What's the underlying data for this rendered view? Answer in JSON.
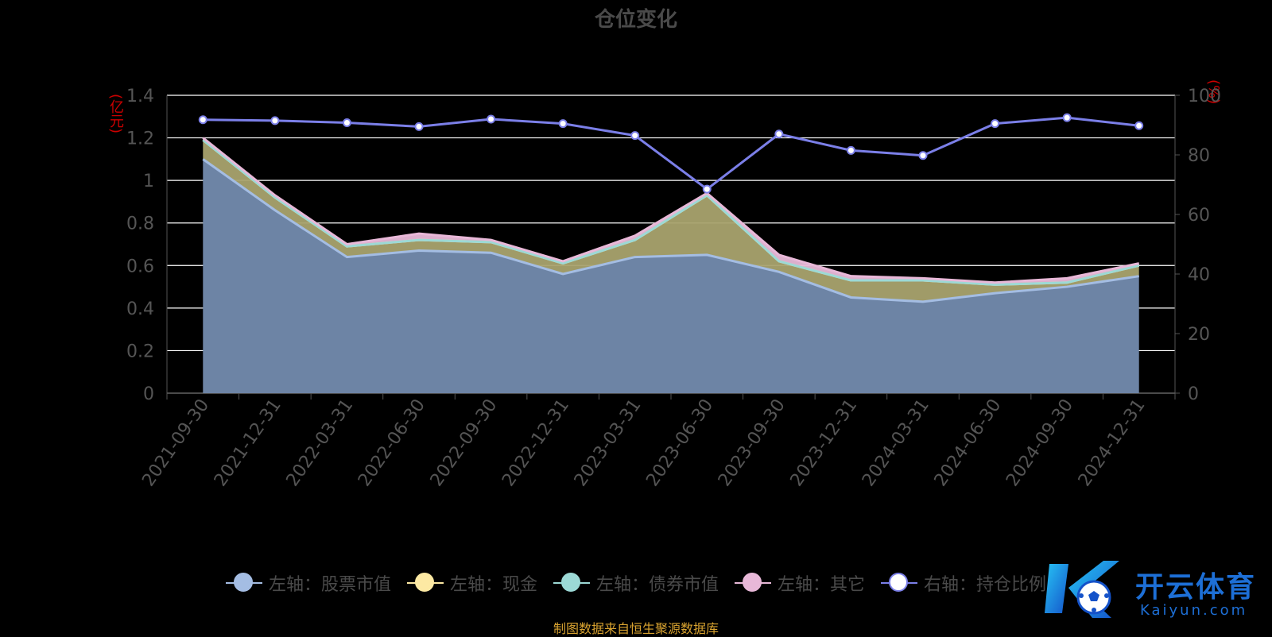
{
  "title": "仓位变化",
  "left_unit": "(亿元)",
  "right_unit": "(%)",
  "source_note": "制图数据来自恒生聚源数据库",
  "watermark": {
    "brand": "开云体育",
    "url": "Kaiyun.com"
  },
  "colors": {
    "stock": "#a4bde3",
    "cash": "#fde9a3",
    "bond": "#9cd9d6",
    "other": "#e8b8d8",
    "ratio": "#7b7fe8",
    "stock_fill": "#6d84a5",
    "cash_fill": "#a9a36e",
    "grid": "#ffffff",
    "axis": "#555555",
    "tick_text": "#555555"
  },
  "legend": [
    {
      "label": "左轴：股票市值",
      "color": "#a4bde3",
      "fill": "#a4bde3"
    },
    {
      "label": "左轴：现金",
      "color": "#fde9a3",
      "fill": "#fde9a3"
    },
    {
      "label": "左轴：债券市值",
      "color": "#9cd9d6",
      "fill": "#9cd9d6"
    },
    {
      "label": "左轴：其它",
      "color": "#e8b8d8",
      "fill": "#e8b8d8"
    },
    {
      "label": "右轴：持仓比例",
      "color": "#7b7fe8",
      "fill": "#ffffff"
    }
  ],
  "chart_data": {
    "type": "area",
    "title": "仓位变化",
    "categories": [
      "2021-09-30",
      "2021-12-31",
      "2022-03-31",
      "2022-06-30",
      "2022-09-30",
      "2022-12-31",
      "2023-03-31",
      "2023-06-30",
      "2023-09-30",
      "2023-12-31",
      "2024-03-31",
      "2024-06-30",
      "2024-09-30",
      "2024-12-31"
    ],
    "y_left": {
      "label": "(亿元)",
      "range": [
        0,
        1.4
      ],
      "ticks": [
        "0",
        "0.2",
        "0.4",
        "0.6",
        "0.8",
        "1",
        "1.2",
        "1.4"
      ],
      "tick_values": [
        0,
        0.2,
        0.4,
        0.6,
        0.8,
        1,
        1.2,
        1.4
      ]
    },
    "y_right": {
      "label": "(%)",
      "range": [
        0,
        100
      ],
      "ticks": [
        "0",
        "20",
        "40",
        "60",
        "80",
        "100"
      ],
      "tick_values": [
        0,
        20,
        40,
        60,
        80,
        100
      ]
    },
    "series": [
      {
        "name": "左轴：股票市值",
        "axis": "left",
        "stack": true,
        "values": [
          1.1,
          0.86,
          0.64,
          0.67,
          0.66,
          0.56,
          0.64,
          0.65,
          0.57,
          0.45,
          0.43,
          0.47,
          0.5,
          0.55
        ]
      },
      {
        "name": "左轴：现金",
        "axis": "left",
        "stack": true,
        "values": [
          0.09,
          0.06,
          0.05,
          0.05,
          0.05,
          0.05,
          0.08,
          0.28,
          0.05,
          0.08,
          0.1,
          0.04,
          0.02,
          0.05
        ]
      },
      {
        "name": "左轴：债券市值",
        "axis": "left",
        "stack": true,
        "values": [
          0,
          0,
          0,
          0,
          0,
          0,
          0,
          0,
          0,
          0,
          0,
          0,
          0,
          0
        ]
      },
      {
        "name": "左轴：其它",
        "axis": "left",
        "stack": true,
        "values": [
          0.01,
          0.01,
          0.01,
          0.03,
          0.01,
          0.01,
          0.02,
          0.01,
          0.03,
          0.02,
          0.01,
          0.01,
          0.02,
          0.01
        ]
      },
      {
        "name": "右轴：持仓比例",
        "axis": "right",
        "type": "line",
        "values": [
          91.8,
          91.5,
          90.8,
          89.5,
          92.0,
          90.5,
          86.5,
          68.5,
          87.0,
          81.5,
          79.8,
          90.5,
          92.5,
          89.8
        ]
      }
    ],
    "grid": true,
    "legend_position": "bottom"
  }
}
